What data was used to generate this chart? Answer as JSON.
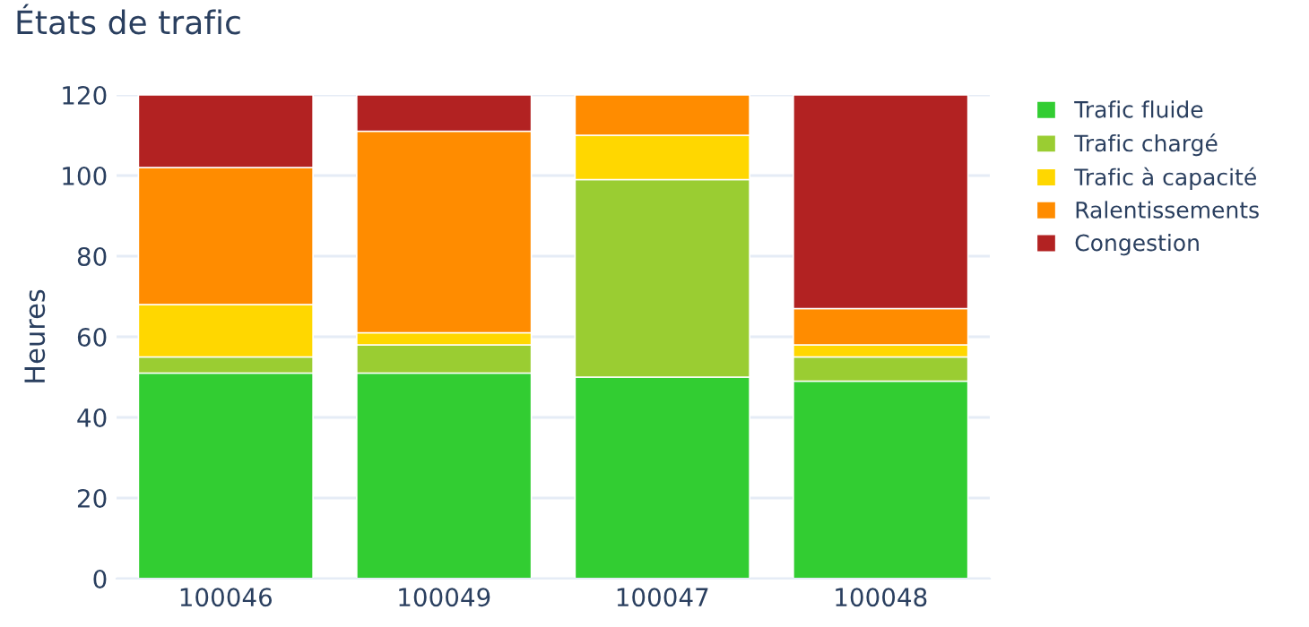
{
  "chart_data": {
    "type": "bar",
    "title": "États de trafic",
    "ylabel": "Heures",
    "categories": [
      "100046",
      "100049",
      "100047",
      "100048"
    ],
    "stacked": true,
    "ylim": [
      0,
      120
    ],
    "yticks": [
      0,
      20,
      40,
      60,
      80,
      100,
      120
    ],
    "grid": "y",
    "legend": "top right",
    "series": [
      {
        "name": "Trafic fluide",
        "color": "#32cd32",
        "values": [
          51,
          51,
          50,
          49
        ]
      },
      {
        "name": "Trafic chargé",
        "color": "#9acd32",
        "values": [
          4,
          7,
          49,
          6
        ]
      },
      {
        "name": "Trafic à capacité",
        "color": "#ffd700",
        "values": [
          13,
          3,
          11,
          3
        ]
      },
      {
        "name": "Ralentissements",
        "color": "#ff8c00",
        "values": [
          34,
          50,
          10,
          9
        ]
      },
      {
        "name": "Congestion",
        "color": "#b22222",
        "values": [
          18,
          9,
          null,
          53
        ]
      }
    ]
  }
}
